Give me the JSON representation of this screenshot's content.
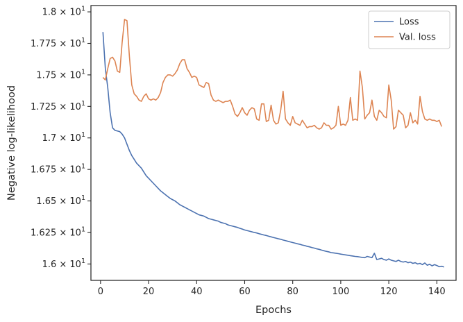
{
  "chart_data": {
    "type": "line",
    "xlabel": "Epochs",
    "ylabel": "Negative log-likelihood",
    "xlim": [
      -4,
      148
    ],
    "ylim": [
      15.87,
      18.05
    ],
    "x_ticks": [
      0,
      20,
      40,
      60,
      80,
      100,
      120,
      140
    ],
    "y_ticks": [
      {
        "value": 16.0,
        "label": "1.6 × 10",
        "exp": "1"
      },
      {
        "value": 16.25,
        "label": "1.625 × 10",
        "exp": "1"
      },
      {
        "value": 16.5,
        "label": "1.65 × 10",
        "exp": "1"
      },
      {
        "value": 16.75,
        "label": "1.675 × 10",
        "exp": "1"
      },
      {
        "value": 17.0,
        "label": "1.7 × 10",
        "exp": "1"
      },
      {
        "value": 17.25,
        "label": "1.725 × 10",
        "exp": "1"
      },
      {
        "value": 17.5,
        "label": "1.75 × 10",
        "exp": "1"
      },
      {
        "value": 17.75,
        "label": "1.775 × 10",
        "exp": "1"
      },
      {
        "value": 18.0,
        "label": "1.8 × 10",
        "exp": "1"
      }
    ],
    "legend_position": "top-right",
    "grid": false,
    "series": [
      {
        "name": "Loss",
        "color": "#4c72b0",
        "x_start": 1,
        "values": [
          17.84,
          17.55,
          17.4,
          17.2,
          17.08,
          17.06,
          17.055,
          17.05,
          17.03,
          17.0,
          16.95,
          16.9,
          16.86,
          16.83,
          16.8,
          16.78,
          16.76,
          16.73,
          16.7,
          16.68,
          16.66,
          16.64,
          16.62,
          16.6,
          16.58,
          16.565,
          16.55,
          16.535,
          16.52,
          16.51,
          16.5,
          16.485,
          16.47,
          16.46,
          16.45,
          16.44,
          16.43,
          16.42,
          16.41,
          16.4,
          16.39,
          16.385,
          16.38,
          16.37,
          16.36,
          16.355,
          16.35,
          16.345,
          16.34,
          16.33,
          16.325,
          16.32,
          16.31,
          16.305,
          16.3,
          16.295,
          16.29,
          16.283,
          16.277,
          16.27,
          16.265,
          16.26,
          16.255,
          16.25,
          16.246,
          16.24,
          16.235,
          16.23,
          16.226,
          16.22,
          16.215,
          16.21,
          16.205,
          16.2,
          16.196,
          16.19,
          16.185,
          16.18,
          16.175,
          16.17,
          16.165,
          16.16,
          16.156,
          16.15,
          16.146,
          16.14,
          16.136,
          16.13,
          16.126,
          16.12,
          16.116,
          16.11,
          16.105,
          16.1,
          16.096,
          16.09,
          16.088,
          16.085,
          16.082,
          16.078,
          16.075,
          16.072,
          16.069,
          16.066,
          16.063,
          16.06,
          16.058,
          16.055,
          16.052,
          16.05,
          16.06,
          16.055,
          16.05,
          16.085,
          16.035,
          16.04,
          16.045,
          16.035,
          16.03,
          16.04,
          16.03,
          16.025,
          16.02,
          16.03,
          16.02,
          16.015,
          16.02,
          16.01,
          16.015,
          16.005,
          16.01,
          16.0,
          16.005,
          15.995,
          16.008,
          15.99,
          15.998,
          15.985,
          15.995,
          15.988,
          15.978,
          15.982,
          15.976
        ]
      },
      {
        "name": "Val. loss",
        "color": "#dd8452",
        "x_start": 1,
        "values": [
          17.48,
          17.46,
          17.55,
          17.63,
          17.64,
          17.61,
          17.53,
          17.52,
          17.76,
          17.94,
          17.93,
          17.65,
          17.42,
          17.35,
          17.33,
          17.3,
          17.29,
          17.33,
          17.35,
          17.31,
          17.3,
          17.31,
          17.3,
          17.32,
          17.36,
          17.44,
          17.48,
          17.5,
          17.5,
          17.49,
          17.51,
          17.54,
          17.59,
          17.62,
          17.62,
          17.55,
          17.52,
          17.48,
          17.49,
          17.48,
          17.42,
          17.41,
          17.4,
          17.44,
          17.43,
          17.34,
          17.3,
          17.29,
          17.3,
          17.29,
          17.28,
          17.29,
          17.29,
          17.3,
          17.25,
          17.19,
          17.17,
          17.2,
          17.24,
          17.2,
          17.18,
          17.22,
          17.24,
          17.23,
          17.15,
          17.14,
          17.27,
          17.27,
          17.13,
          17.14,
          17.26,
          17.14,
          17.11,
          17.12,
          17.22,
          17.37,
          17.15,
          17.12,
          17.1,
          17.17,
          17.12,
          17.11,
          17.1,
          17.14,
          17.11,
          17.08,
          17.09,
          17.09,
          17.1,
          17.08,
          17.07,
          17.08,
          17.12,
          17.1,
          17.1,
          17.07,
          17.08,
          17.1,
          17.25,
          17.1,
          17.11,
          17.1,
          17.14,
          17.32,
          17.14,
          17.15,
          17.14,
          17.53,
          17.4,
          17.15,
          17.18,
          17.2,
          17.3,
          17.17,
          17.14,
          17.22,
          17.2,
          17.17,
          17.16,
          17.42,
          17.3,
          17.07,
          17.09,
          17.22,
          17.2,
          17.18,
          17.08,
          17.1,
          17.2,
          17.12,
          17.14,
          17.11,
          17.33,
          17.21,
          17.15,
          17.14,
          17.15,
          17.14,
          17.14,
          17.13,
          17.14,
          17.09
        ]
      }
    ]
  }
}
